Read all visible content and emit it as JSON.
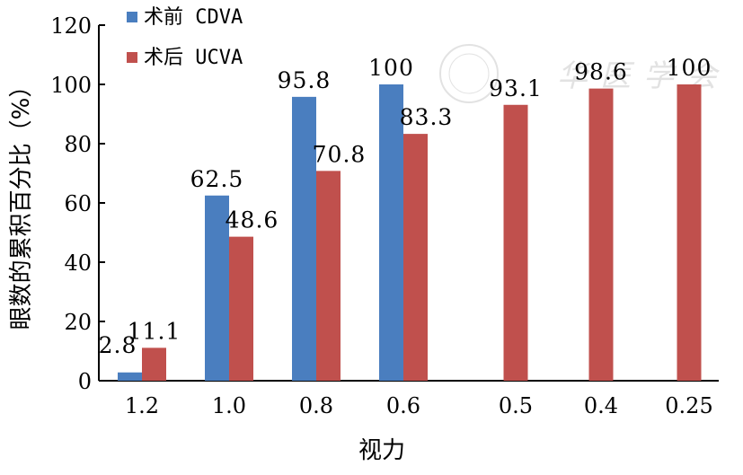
{
  "chart_data": {
    "type": "bar",
    "title": "",
    "xlabel": "视力",
    "ylabel": "眼数的累积百分比（%）",
    "ylim": [
      0,
      120
    ],
    "yticks": [
      0,
      20,
      40,
      60,
      80,
      100,
      120
    ],
    "grid": false,
    "legend_placement": "top-left",
    "categories": [
      "1.2",
      "1.0",
      "0.8",
      "0.6",
      "0.5",
      "0.4",
      "0.25"
    ],
    "series": [
      {
        "name": "术前 CDVA",
        "color": "#4a7ebf",
        "values": [
          2.8,
          62.5,
          95.8,
          100,
          null,
          null,
          null
        ],
        "labels": [
          "2.8",
          "62.5",
          "95.8",
          "100",
          "",
          "",
          ""
        ]
      },
      {
        "name": "术后 UCVA",
        "color": "#c0504d",
        "values": [
          11.1,
          48.6,
          70.8,
          83.3,
          93.1,
          98.6,
          100
        ],
        "labels": [
          "11.1",
          "48.6",
          "70.8",
          "83.3",
          "93.1",
          "98.6",
          "100"
        ]
      }
    ]
  },
  "watermark": "中华医学会"
}
